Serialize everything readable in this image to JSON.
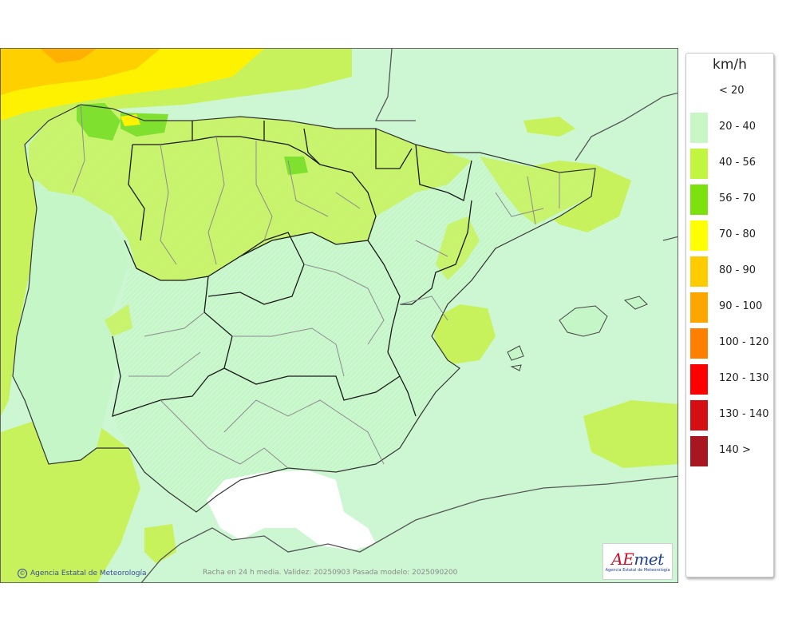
{
  "map": {
    "credit": "Agencia Estatal de Meteorología",
    "validity_text": "Racha en 24 h media. Validez: 20250903 Pasada modelo: 2025090200",
    "logo": {
      "mark_prefix": "AE",
      "mark_suffix": "met",
      "subtitle": "Agencia Estatal de Meteorología"
    },
    "colors": {
      "sea": "#ccf7d2",
      "light_green": "#c5f6c8",
      "yellow_green": "#c8f25c",
      "green": "#7fe02f",
      "yellow": "#fff200",
      "orange_yellow": "#ffd000",
      "border_dark": "#1a1a1a",
      "border_light": "#888888"
    }
  },
  "legend": {
    "title": "km/h",
    "items": [
      {
        "label": "< 20",
        "color": "#ffffff"
      },
      {
        "label": "20 - 40",
        "color": "#c8f7c5"
      },
      {
        "label": "40 - 56",
        "color": "#c2f540"
      },
      {
        "label": "56 - 70",
        "color": "#7ce20e"
      },
      {
        "label": "70 - 80",
        "color": "#ffff00"
      },
      {
        "label": "80 - 90",
        "color": "#ffcc00"
      },
      {
        "label": "90 - 100",
        "color": "#ffa500"
      },
      {
        "label": "100 - 120",
        "color": "#ff7f00"
      },
      {
        "label": "120 - 130",
        "color": "#ff0000"
      },
      {
        "label": "130 - 140",
        "color": "#d40f14"
      },
      {
        "label": "140 >",
        "color": "#a81720"
      }
    ]
  }
}
